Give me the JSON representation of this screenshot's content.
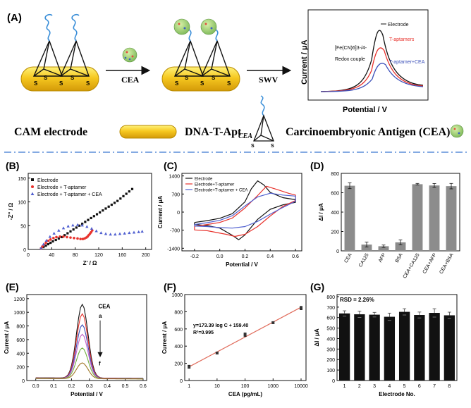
{
  "panel_labels": {
    "A": "(A)",
    "B": "(B)",
    "C": "(C)",
    "D": "(D)",
    "E": "(E)",
    "F": "(F)",
    "G": "(G)"
  },
  "schematic": {
    "arrow1_label": "CEA",
    "arrow2_label": "SWV",
    "legend": {
      "electrode": "CAM electrode",
      "tetrahedron": "DNA-T-Apt",
      "tetrahedron_sub": "CEA",
      "antigen": "Carcinoembryonic Antigen (CEA)"
    },
    "inset": {
      "ylabel": "Current / μA",
      "xlabel": "Potential / V",
      "redox_line1": "[Fe(CN)6]3-/4-",
      "redox_line2": "Redox couple",
      "curves": [
        {
          "name": "Electrode",
          "color": "#111111"
        },
        {
          "name": "T-aptamers",
          "color": "#e8322c"
        },
        {
          "name": "T-aptamer+CEA",
          "color": "#3b4fb8"
        }
      ]
    }
  },
  "colors": {
    "black": "#111111",
    "red": "#e8322c",
    "blue": "#5060d0",
    "bar_gray": "#8c8c8c",
    "fit_red": "#e06b5b",
    "dash": "#5b8ed8"
  },
  "chart_data": [
    {
      "panel": "B",
      "type": "scatter",
      "xlabel": "Z' / Ω",
      "ylabel": "-Z'' / Ω",
      "xlim": [
        0,
        210
      ],
      "ylim": [
        0,
        160
      ],
      "xticks": [
        "0",
        "40",
        "80",
        "120",
        "160",
        "200"
      ],
      "yticks": [
        "0",
        "50",
        "100",
        "150"
      ],
      "legend_position": "top-left",
      "series": [
        {
          "name": "Electrode",
          "color": "#111111",
          "marker": "square",
          "x": [
            22,
            26,
            30,
            34,
            38,
            42,
            47,
            52,
            57,
            62,
            67,
            72,
            77,
            82,
            87,
            92,
            97,
            102,
            107,
            112,
            117,
            122,
            127,
            132,
            137,
            142,
            147,
            152,
            157,
            162,
            167,
            172,
            177
          ],
          "y": [
            2,
            5,
            8,
            11,
            14,
            17,
            20,
            23,
            26,
            30,
            34,
            38,
            42,
            46,
            50,
            54,
            58,
            62,
            66,
            70,
            74,
            78,
            82,
            86,
            90,
            94,
            98,
            102,
            107,
            112,
            117,
            122,
            127
          ]
        },
        {
          "name": "Electrode + T-aptamer",
          "color": "#e8322c",
          "marker": "circle",
          "x": [
            22,
            24,
            27,
            30,
            34,
            38,
            43,
            48,
            54,
            60,
            66,
            72,
            78,
            84,
            89,
            93,
            96,
            99,
            101,
            103,
            105,
            107,
            109
          ],
          "y": [
            2,
            6,
            10,
            14,
            18,
            21,
            24,
            26,
            27,
            27,
            26,
            25,
            24,
            23,
            22,
            22,
            23,
            25,
            27,
            30,
            33,
            36,
            40
          ]
        },
        {
          "name": "Electrode + T-aptamer + CEA",
          "color": "#5060d0",
          "marker": "triangle",
          "x": [
            22,
            26,
            31,
            37,
            44,
            52,
            60,
            68,
            76,
            84,
            92,
            100,
            108,
            116,
            124,
            132,
            140,
            148,
            156,
            164,
            172,
            180,
            188,
            194
          ],
          "y": [
            3,
            11,
            19,
            27,
            34,
            40,
            45,
            49,
            51,
            52,
            51,
            48,
            44,
            39,
            35,
            33,
            32,
            32,
            33,
            34,
            35,
            36,
            37,
            38
          ]
        }
      ]
    },
    {
      "panel": "C",
      "type": "line",
      "xlabel": "Potential / V",
      "ylabel": "Current / μA",
      "xlim": [
        -0.3,
        0.65
      ],
      "ylim": [
        -1500,
        1500
      ],
      "xticks": [
        "-0.2",
        "0.0",
        "0.2",
        "0.4",
        "0.6"
      ],
      "yticks": [
        "-1400",
        "-700",
        "0",
        "700",
        "1400"
      ],
      "legend_position": "top-left",
      "series": [
        {
          "name": "Electrode",
          "color": "#111111",
          "x": [
            -0.2,
            -0.1,
            0.0,
            0.1,
            0.2,
            0.25,
            0.3,
            0.35,
            0.4,
            0.5,
            0.6,
            0.6,
            0.5,
            0.4,
            0.3,
            0.2,
            0.15,
            0.1,
            0.0,
            -0.1,
            -0.2,
            -0.2
          ],
          "y": [
            -400,
            -330,
            -240,
            -60,
            400,
            900,
            1210,
            1050,
            760,
            560,
            480,
            380,
            280,
            110,
            -280,
            -880,
            -1070,
            -900,
            -620,
            -520,
            -480,
            -400
          ]
        },
        {
          "name": "Electrode+T-aptamer",
          "color": "#e8322c",
          "x": [
            -0.2,
            -0.1,
            0.0,
            0.1,
            0.2,
            0.3,
            0.37,
            0.45,
            0.55,
            0.6,
            0.6,
            0.5,
            0.4,
            0.3,
            0.2,
            0.12,
            0.05,
            -0.1,
            -0.2,
            -0.2
          ],
          "y": [
            -550,
            -480,
            -400,
            -230,
            160,
            640,
            1000,
            880,
            720,
            660,
            450,
            220,
            -150,
            -560,
            -860,
            -940,
            -860,
            -720,
            -690,
            -550
          ]
        },
        {
          "name": "Electrode+T-aptamer + CEA",
          "color": "#5060d0",
          "x": [
            -0.2,
            -0.1,
            0.0,
            0.1,
            0.2,
            0.3,
            0.4,
            0.5,
            0.6,
            0.6,
            0.5,
            0.4,
            0.3,
            0.2,
            0.1,
            0.0,
            -0.1,
            -0.2,
            -0.2
          ],
          "y": [
            -480,
            -410,
            -320,
            -140,
            240,
            590,
            730,
            660,
            620,
            420,
            180,
            -80,
            -360,
            -560,
            -620,
            -600,
            -560,
            -540,
            -480
          ]
        }
      ]
    },
    {
      "panel": "D",
      "type": "bar",
      "ylabel": "ΔI / μA",
      "ylim": [
        0,
        800
      ],
      "yticks": [
        "0",
        "200",
        "400",
        "600",
        "800"
      ],
      "categories": [
        "CEA",
        "CA125",
        "AFP",
        "BSA",
        "CEA+CA125",
        "CEA+AFP",
        "CEA+BSA"
      ],
      "values": [
        672,
        65,
        48,
        88,
        688,
        675,
        668
      ],
      "errors": [
        30,
        25,
        12,
        25,
        8,
        20,
        28
      ],
      "color": "#8c8c8c"
    },
    {
      "panel": "E",
      "type": "line",
      "xlabel": "Potential / V",
      "ylabel": "Current / μA",
      "xlim": [
        -0.05,
        0.62
      ],
      "ylim": [
        0,
        1260
      ],
      "xticks": [
        "0.0",
        "0.1",
        "0.2",
        "0.3",
        "0.4",
        "0.5",
        "0.6"
      ],
      "yticks": [
        "0",
        "200",
        "400",
        "600",
        "800",
        "1000",
        "1200"
      ],
      "annotations": {
        "title": "CEA",
        "top": "a",
        "bottom": "f"
      },
      "peak_potential": 0.26,
      "series": [
        {
          "color": "#111111",
          "peak": 1120,
          "baseline": 40
        },
        {
          "color": "#e8322c",
          "peak": 980,
          "baseline": 38
        },
        {
          "color": "#3b4fb8",
          "peak": 820,
          "baseline": 35
        },
        {
          "color": "#c060c8",
          "peak": 680,
          "baseline": 33
        },
        {
          "color": "#70b040",
          "peak": 480,
          "baseline": 30
        },
        {
          "color": "#a07828",
          "peak": 260,
          "baseline": 28
        }
      ]
    },
    {
      "panel": "F",
      "type": "scatter",
      "xlabel": "CEA  (pg/mL)",
      "ylabel": "Current / μA",
      "xscale": "log",
      "xlim": [
        0.7,
        15000
      ],
      "ylim": [
        0,
        1000
      ],
      "xticks": [
        "1",
        "10",
        "100",
        "1000",
        "10000"
      ],
      "yticks": [
        "0",
        "200",
        "400",
        "600",
        "800",
        "1000"
      ],
      "equation": "y=173.39 log C + 159.40",
      "r2": "R²=0.995",
      "x": [
        1,
        10,
        100,
        1000,
        10000
      ],
      "y": [
        160,
        320,
        533,
        673,
        843
      ],
      "errors": [
        18,
        12,
        22,
        12,
        20
      ],
      "fit": {
        "slope": 173.39,
        "intercept": 159.4
      }
    },
    {
      "panel": "G",
      "type": "bar",
      "xlabel": "Electrode No.",
      "ylabel": "ΔI / μA",
      "ylim": [
        0,
        820
      ],
      "yticks": [
        "0",
        "100",
        "200",
        "300",
        "400",
        "500",
        "600",
        "700",
        "800"
      ],
      "categories": [
        "1",
        "2",
        "3",
        "4",
        "5",
        "6",
        "7",
        "8"
      ],
      "values": [
        640,
        632,
        628,
        608,
        655,
        625,
        645,
        622
      ],
      "errors": [
        25,
        30,
        22,
        35,
        30,
        28,
        40,
        30
      ],
      "annotation": "RSD = 2.26%",
      "color": "#111111"
    }
  ]
}
